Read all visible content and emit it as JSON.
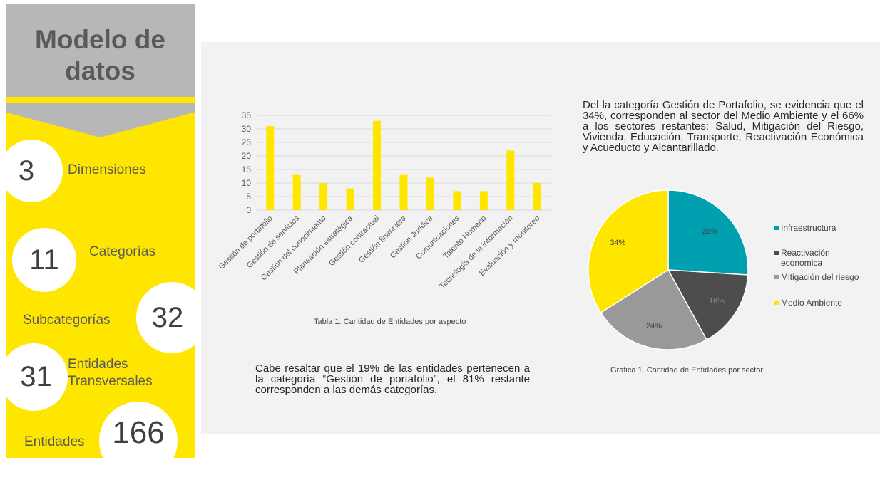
{
  "sidebar": {
    "title": "Modelo de datos",
    "stats": [
      {
        "number": "3",
        "label": "Dimensiones"
      },
      {
        "number": "11",
        "label": "Categorías"
      },
      {
        "number": "32",
        "label": "Subcategorías"
      },
      {
        "number": "31",
        "label": "Entidades Transversales"
      },
      {
        "number": "166",
        "label": "Entidades"
      }
    ]
  },
  "paragraphs": {
    "pie_text": "Del la categoría Gestión de Portafolio, se evidencia que el 34%, corresponden al sector del Medio Ambiente y el 66% a los sectores restantes: Salud, Mitigación del Riesgo, Vivienda, Educación, Transporte, Reactivación Económica y Acueducto y Alcantarillado.",
    "bar_text": "Cabe resaltar que el 19% de las entidades pertenecen a la categoría “Gestión de portafolio”, el 81% restante corresponden a las demás categorías."
  },
  "colors": {
    "yellow": "#ffe600",
    "gray": "#b7b7b7",
    "panel": "#f2f2f2"
  },
  "chart_data": [
    {
      "type": "bar",
      "title": "",
      "caption": "Tabla 1. Cantidad de Entidades por aspecto",
      "xlabel": "",
      "ylabel": "",
      "categories": [
        "Gestión de portafolio",
        "Gestión de servicios",
        "Gestión del conocimiento",
        "Planeación estratégica",
        "Gestión contractual",
        "Gestión financiera",
        "Gestión Jurídica",
        "Comunicaciones",
        "Talento Humano",
        "Tecnología de la información",
        "Evaluación y monitoreo"
      ],
      "values": [
        31,
        13,
        10,
        8,
        33,
        13,
        12,
        7,
        7,
        22,
        10
      ],
      "ylim": [
        0,
        35
      ],
      "yticks": [
        0,
        5,
        10,
        15,
        20,
        25,
        30,
        35
      ],
      "grid": true,
      "color": "#ffe600"
    },
    {
      "type": "pie",
      "title": "",
      "caption": "Grafica 1. Cantidad de Entidades por sector",
      "legend_position": "right",
      "slices": [
        {
          "name": "Infraestructura",
          "value": 26,
          "label": "26%",
          "color": "#00a0b0"
        },
        {
          "name": "Reactivación economica",
          "value": 16,
          "label": "16%",
          "color": "#4d4d4d"
        },
        {
          "name": "Mitigación del riesgo",
          "value": 24,
          "label": "24%",
          "color": "#999999"
        },
        {
          "name": "Medio Ambiente",
          "value": 34,
          "label": "34%",
          "color": "#ffe600"
        }
      ]
    }
  ]
}
